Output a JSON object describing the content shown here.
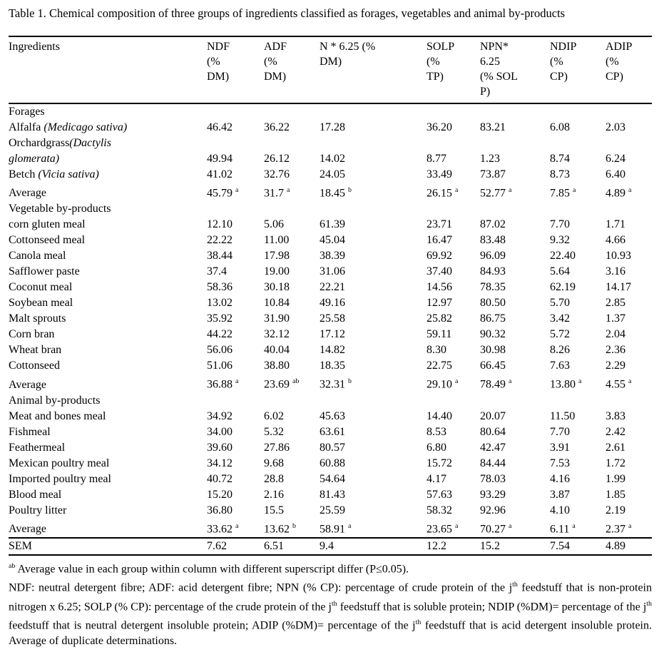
{
  "document": {
    "caption": "Table 1. Chemical composition of three groups of ingredients classified as forages, vegetables and animal by-products",
    "footnotes": {
      "superscript_note": "^{ab} Average value in each group within column with different superscript differ (P≤0.05).",
      "abbreviations": "NDF: neutral detergent fibre; ADF: acid detergent fibre; NPN (% CP): percentage of crude protein of the j^{th} feedstuff that is non-protein nitrogen x 6.25; SOLP (% CP): percentage of the crude protein of the j^{th} feedstuff that is soluble protein; NDIP (%DM)= percentage of the j^{th} feedstuff that is neutral detergent insoluble protein; ADIP (%DM)= percentage of the j^{th} feedstuff that is acid detergent insoluble protein. Average of duplicate determinations."
    }
  },
  "table": {
    "columns": [
      "Ingredients",
      "NDF\n(%\nDM)",
      "ADF\n(%\nDM)",
      "N * 6.25 (%\nDM)",
      "SOLP\n(%\nTP)",
      "NPN*\n6.25\n(% SOL\nP)",
      "NDIP\n(%\nCP)",
      "ADIP\n(%\nCP)"
    ],
    "rows": [
      {
        "kind": "group",
        "name": "Forages"
      },
      {
        "kind": "data",
        "name": "Alfalfa *(Medicago sativa)*",
        "values": [
          "46.42",
          "36.22",
          "17.28",
          "36.20",
          "83.21",
          "6.08",
          "2.03"
        ]
      },
      {
        "kind": "data",
        "name": "Orchardgrass*(Dactylis\nglomerata)*",
        "values": [
          "49.94",
          "26.12",
          "14.02",
          "8.77",
          "1.23",
          "8.74",
          "6.24"
        ]
      },
      {
        "kind": "data",
        "name": "Betch *(Vicia sativa)*",
        "values": [
          "41.02",
          "32.76",
          "24.05",
          "33.49",
          "73.87",
          "8.73",
          "6.40"
        ]
      },
      {
        "kind": "data",
        "name": "Average",
        "values": [
          "45.79 ^{a}",
          "31.7 ^{a}",
          "18.45 ^{b}",
          "26.15 ^{a}",
          "52.77 ^{a}",
          "7.85 ^{a}",
          "4.89 ^{a}"
        ]
      },
      {
        "kind": "group",
        "name": "Vegetable by-products"
      },
      {
        "kind": "data",
        "name": "corn gluten meal",
        "values": [
          "12.10",
          "5.06",
          "61.39",
          "23.71",
          "87.02",
          "7.70",
          "1.71"
        ]
      },
      {
        "kind": "data",
        "name": "Cottonseed meal",
        "values": [
          "22.22",
          "11.00",
          "45.04",
          "16.47",
          "83.48",
          "9.32",
          "4.66"
        ]
      },
      {
        "kind": "data",
        "name": "Canola meal",
        "values": [
          "38.44",
          "17.98",
          "38.39",
          "69.92",
          "96.09",
          "22.40",
          "10.93"
        ]
      },
      {
        "kind": "data",
        "name": "Safflower paste",
        "values": [
          "37.4",
          "19.00",
          "31.06",
          "37.40",
          "84.93",
          "5.64",
          "3.16"
        ]
      },
      {
        "kind": "data",
        "name": "Coconut meal",
        "values": [
          "58.36",
          "30.18",
          "22.21",
          "14.56",
          "78.35",
          "62.19",
          "14.17"
        ]
      },
      {
        "kind": "data",
        "name": "Soybean meal",
        "values": [
          "13.02",
          "10.84",
          "49.16",
          "12.97",
          "80.50",
          "5.70",
          "2.85"
        ]
      },
      {
        "kind": "data",
        "name": "Malt sprouts",
        "values": [
          "35.92",
          "31.90",
          "25.58",
          "25.82",
          "86.75",
          "3.42",
          "1.37"
        ]
      },
      {
        "kind": "data",
        "name": "Corn bran",
        "values": [
          "44.22",
          "32.12",
          "17.12",
          "59.11",
          "90.32",
          "5.72",
          "2.04"
        ]
      },
      {
        "kind": "data",
        "name": "Wheat bran",
        "values": [
          "56.06",
          "40.04",
          "14.82",
          "8.30",
          "30.98",
          "8.26",
          "2.36"
        ]
      },
      {
        "kind": "data",
        "name": "Cottonseed",
        "values": [
          "51.06",
          "38.80",
          "18.35",
          "22.75",
          "66.45",
          "7.63",
          "2.29"
        ]
      },
      {
        "kind": "data",
        "name": "Average",
        "values": [
          "36.88 ^{a}",
          "23.69 ^{ab}",
          "32.31 ^{b}",
          "29.10 ^{a}",
          "78.49 ^{a}",
          "13.80 ^{a}",
          "4.55 ^{a}"
        ]
      },
      {
        "kind": "group",
        "name": "Animal by-products"
      },
      {
        "kind": "data",
        "name": "Meat and bones meal",
        "values": [
          "34.92",
          "6.02",
          "45.63",
          "14.40",
          "20.07",
          "11.50",
          "3.83"
        ]
      },
      {
        "kind": "data",
        "name": "Fishmeal",
        "values": [
          "34.00",
          "5.32",
          "63.61",
          "8.53",
          "80.64",
          "7.70",
          "2.42"
        ]
      },
      {
        "kind": "data",
        "name": "Feathermeal",
        "values": [
          "39.60",
          "27.86",
          "80.57",
          "6.80",
          "42.47",
          "3.91",
          "2.61"
        ]
      },
      {
        "kind": "data",
        "name": "Mexican poultry meal",
        "values": [
          "34.12",
          "9.68",
          "60.88",
          "15.72",
          "84.44",
          "7.53",
          "1.72"
        ]
      },
      {
        "kind": "data",
        "name": "Imported poultry meal",
        "values": [
          "40.72",
          "28.8",
          "54.64",
          "4.17",
          "78.03",
          "4.16",
          "1.99"
        ]
      },
      {
        "kind": "data",
        "name": "Blood meal",
        "values": [
          "15.20",
          "2.16",
          "81.43",
          "57.63",
          "93.29",
          "3.87",
          "1.85"
        ]
      },
      {
        "kind": "data",
        "name": "Poultry litter",
        "values": [
          "36.80",
          "15.5",
          "25.59",
          "58.32",
          "92.96",
          "4.10",
          "2.19"
        ]
      },
      {
        "kind": "data",
        "name": "Average",
        "values": [
          "33.62 ^{a}",
          "13.62 ^{b}",
          "58.91 ^{a}",
          "23.65 ^{a}",
          "70.27 ^{a}",
          "6.11 ^{a}",
          "2.37 ^{a}"
        ]
      },
      {
        "kind": "data",
        "name": "SEM",
        "rule_above": true,
        "values": [
          "7.62",
          "6.51",
          "9.4",
          "12.2",
          "15.2",
          "7.54",
          "4.89"
        ]
      }
    ]
  }
}
